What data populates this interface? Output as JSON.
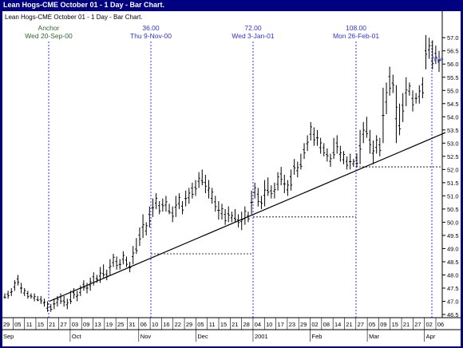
{
  "window": {
    "title": "Lean Hogs-CME October 01 - 1 Day - Bar Chart.",
    "chart_caption": "Lean Hogs-CME October 01 - 1 Day - Bar Chart."
  },
  "colors": {
    "window_bg": "#000080",
    "plot_bg": "#ffffff",
    "bars": "#000000",
    "cycle_lines": "#0000ff",
    "label_blue": "#3333cc",
    "label_green": "#336633"
  },
  "chart_data": {
    "type": "bar",
    "subtype": "ohlc",
    "title": "Lean Hogs-CME October 01 - 1 Day - Bar Chart.",
    "ylim": [
      46.5,
      57.4
    ],
    "y_ticks": [
      "46.5",
      "47.0",
      "47.5",
      "48.0",
      "48.5",
      "49.0",
      "49.5",
      "50.0",
      "50.5",
      "51.0",
      "51.5",
      "52.0",
      "52.5",
      "53.0",
      "53.5",
      "54.0",
      "54.5",
      "55.0",
      "55.5",
      "56.0",
      "56.5",
      "57.0"
    ],
    "x_ticks": [
      {
        "day": "29",
        "month": "Sep"
      },
      {
        "day": "05",
        "month": ""
      },
      {
        "day": "11",
        "month": ""
      },
      {
        "day": "15",
        "month": ""
      },
      {
        "day": "21",
        "month": ""
      },
      {
        "day": "27",
        "month": ""
      },
      {
        "day": "03",
        "month": "Oct"
      },
      {
        "day": "09",
        "month": ""
      },
      {
        "day": "13",
        "month": ""
      },
      {
        "day": "19",
        "month": ""
      },
      {
        "day": "25",
        "month": ""
      },
      {
        "day": "31",
        "month": ""
      },
      {
        "day": "06",
        "month": "Nov"
      },
      {
        "day": "10",
        "month": ""
      },
      {
        "day": "16",
        "month": ""
      },
      {
        "day": "22",
        "month": ""
      },
      {
        "day": "29",
        "month": ""
      },
      {
        "day": "05",
        "month": "Dec"
      },
      {
        "day": "11",
        "month": ""
      },
      {
        "day": "15",
        "month": ""
      },
      {
        "day": "21",
        "month": ""
      },
      {
        "day": "28",
        "month": ""
      },
      {
        "day": "04",
        "month": "2001"
      },
      {
        "day": "10",
        "month": ""
      },
      {
        "day": "17",
        "month": ""
      },
      {
        "day": "23",
        "month": ""
      },
      {
        "day": "29",
        "month": ""
      },
      {
        "day": "02",
        "month": "Feb"
      },
      {
        "day": "08",
        "month": ""
      },
      {
        "day": "14",
        "month": ""
      },
      {
        "day": "21",
        "month": ""
      },
      {
        "day": "27",
        "month": ""
      },
      {
        "day": "05",
        "month": "Mar"
      },
      {
        "day": "09",
        "month": ""
      },
      {
        "day": "15",
        "month": ""
      },
      {
        "day": "21",
        "month": ""
      },
      {
        "day": "27",
        "month": ""
      },
      {
        "day": "02",
        "month": "Apr"
      },
      {
        "day": "06",
        "month": ""
      }
    ],
    "bars_ohlc_high_low": [
      [
        47.3,
        47.1
      ],
      [
        47.4,
        47.1
      ],
      [
        47.5,
        47.2
      ],
      [
        47.8,
        47.4
      ],
      [
        48.0,
        47.6
      ],
      [
        47.7,
        47.3
      ],
      [
        47.5,
        47.2
      ],
      [
        47.4,
        47.1
      ],
      [
        47.3,
        47.1
      ],
      [
        47.3,
        47.0
      ],
      [
        47.2,
        47.0
      ],
      [
        47.2,
        46.9
      ],
      [
        47.1,
        46.8
      ],
      [
        47.0,
        46.6
      ],
      [
        46.9,
        46.6
      ],
      [
        47.1,
        46.7
      ],
      [
        47.2,
        46.8
      ],
      [
        47.3,
        46.9
      ],
      [
        47.2,
        46.8
      ],
      [
        47.1,
        46.7
      ],
      [
        47.4,
        46.9
      ],
      [
        47.5,
        47.1
      ],
      [
        47.4,
        47.0
      ],
      [
        47.6,
        47.2
      ],
      [
        47.8,
        47.4
      ],
      [
        47.7,
        47.3
      ],
      [
        47.9,
        47.4
      ],
      [
        48.1,
        47.6
      ],
      [
        48.0,
        47.7
      ],
      [
        48.3,
        47.7
      ],
      [
        48.4,
        47.9
      ],
      [
        48.2,
        47.8
      ],
      [
        48.6,
        48.0
      ],
      [
        48.8,
        48.3
      ],
      [
        48.7,
        48.2
      ],
      [
        48.6,
        48.2
      ],
      [
        48.9,
        48.4
      ],
      [
        48.7,
        48.3
      ],
      [
        48.5,
        48.1
      ],
      [
        49.1,
        48.4
      ],
      [
        49.4,
        48.8
      ],
      [
        49.8,
        49.1
      ],
      [
        50.3,
        49.4
      ],
      [
        50.0,
        49.5
      ],
      [
        50.6,
        49.8
      ],
      [
        50.9,
        50.2
      ],
      [
        51.1,
        50.5
      ],
      [
        50.8,
        50.3
      ],
      [
        50.9,
        50.4
      ],
      [
        51.0,
        50.4
      ],
      [
        50.7,
        50.3
      ],
      [
        50.6,
        50.0
      ],
      [
        51.0,
        50.2
      ],
      [
        51.1,
        50.5
      ],
      [
        50.8,
        50.3
      ],
      [
        51.2,
        50.6
      ],
      [
        51.3,
        50.7
      ],
      [
        51.5,
        50.9
      ],
      [
        51.6,
        51.0
      ],
      [
        51.9,
        51.3
      ],
      [
        52.0,
        51.4
      ],
      [
        51.8,
        51.1
      ],
      [
        51.6,
        50.9
      ],
      [
        51.3,
        50.7
      ],
      [
        51.0,
        50.4
      ],
      [
        50.8,
        50.1
      ],
      [
        50.7,
        50.1
      ],
      [
        50.5,
        49.9
      ],
      [
        50.6,
        50.0
      ],
      [
        50.4,
        50.0
      ],
      [
        50.5,
        50.0
      ],
      [
        50.3,
        49.8
      ],
      [
        50.4,
        49.7
      ],
      [
        50.6,
        49.9
      ],
      [
        50.4,
        50.0
      ],
      [
        51.2,
        50.3
      ],
      [
        51.5,
        50.9
      ],
      [
        51.3,
        50.6
      ],
      [
        51.0,
        50.5
      ],
      [
        51.6,
        50.6
      ],
      [
        51.7,
        51.0
      ],
      [
        51.4,
        50.9
      ],
      [
        51.5,
        50.9
      ],
      [
        51.9,
        51.2
      ],
      [
        52.1,
        51.4
      ],
      [
        51.8,
        51.1
      ],
      [
        51.6,
        51.0
      ],
      [
        52.0,
        51.2
      ],
      [
        52.4,
        51.8
      ],
      [
        52.3,
        51.7
      ],
      [
        52.6,
        52.0
      ],
      [
        53.0,
        52.4
      ],
      [
        53.3,
        52.7
      ],
      [
        53.8,
        53.1
      ],
      [
        53.6,
        52.9
      ],
      [
        53.5,
        52.9
      ],
      [
        53.2,
        52.6
      ],
      [
        53.0,
        52.5
      ],
      [
        52.8,
        52.3
      ],
      [
        52.6,
        52.1
      ],
      [
        53.2,
        52.4
      ],
      [
        53.3,
        52.6
      ],
      [
        52.9,
        52.3
      ],
      [
        52.7,
        52.2
      ],
      [
        52.5,
        52.0
      ],
      [
        52.6,
        52.0
      ],
      [
        52.4,
        52.1
      ],
      [
        52.6,
        52.1
      ],
      [
        53.5,
        52.2
      ],
      [
        53.8,
        53.0
      ],
      [
        54.0,
        53.2
      ],
      [
        53.5,
        52.6
      ],
      [
        53.1,
        52.2
      ],
      [
        53.3,
        52.6
      ],
      [
        53.2,
        52.5
      ],
      [
        55.1,
        53.0
      ],
      [
        55.3,
        54.1
      ],
      [
        55.9,
        54.8
      ],
      [
        55.6,
        54.9
      ],
      [
        55.2,
        53.0
      ],
      [
        54.5,
        53.3
      ],
      [
        54.9,
        53.8
      ],
      [
        55.5,
        54.4
      ],
      [
        55.3,
        54.8
      ],
      [
        55.0,
        54.2
      ],
      [
        54.9,
        54.5
      ],
      [
        55.2,
        54.5
      ],
      [
        55.5,
        54.7
      ],
      [
        57.1,
        55.8
      ],
      [
        57.0,
        56.2
      ],
      [
        56.9,
        55.8
      ],
      [
        56.7,
        56.0
      ],
      [
        56.5,
        55.7
      ]
    ],
    "trend_line": {
      "from": [
        47.0,
        0
      ],
      "to": [
        53.4,
        147
      ]
    },
    "annotations": [
      {
        "label": "Anchor",
        "date": "Wed 20-Sep-00",
        "color": "green"
      },
      {
        "label": "36.00",
        "date": "Thu 9-Nov-00",
        "color": "blue"
      },
      {
        "label": "72.00",
        "date": "Wed 3-Jan-01",
        "color": "blue"
      },
      {
        "label": "108.00",
        "date": "Mon 26-Feb-01",
        "color": "blue"
      }
    ],
    "edge_label": "We",
    "reference_levels": [
      48.8,
      50.2,
      52.1
    ]
  }
}
